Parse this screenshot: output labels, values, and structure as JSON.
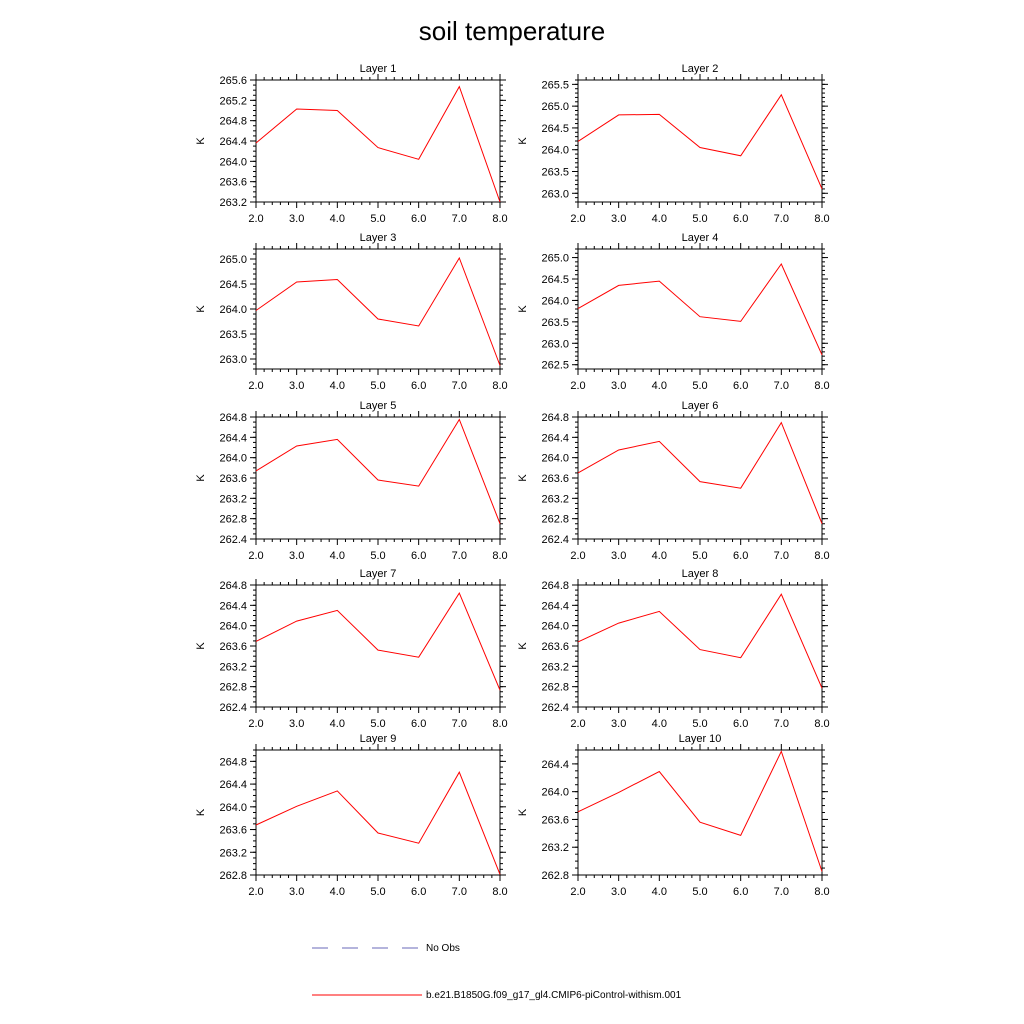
{
  "chart_data": {
    "type": "line",
    "title": "soil temperature",
    "xlabel": "",
    "ylabel": "K",
    "x": [
      2,
      3,
      4,
      5,
      6,
      7,
      8
    ],
    "xticks": [
      "2.0",
      "3.0",
      "4.0",
      "5.0",
      "6.0",
      "7.0",
      "8.0"
    ],
    "xlim": [
      2,
      8
    ],
    "series_style": {
      "color": "#ff0000"
    },
    "panels": [
      {
        "title": "Layer 1",
        "ylim": [
          263.2,
          265.6
        ],
        "yticks": [
          "263.2",
          "263.6",
          "264.0",
          "264.4",
          "264.8",
          "265.2",
          "265.6"
        ],
        "values": [
          264.36,
          265.03,
          265.0,
          264.27,
          264.04,
          265.47,
          263.2
        ]
      },
      {
        "title": "Layer 2",
        "ylim": [
          262.8,
          265.6
        ],
        "yticks": [
          "263.0",
          "263.5",
          "264.0",
          "264.5",
          "265.0",
          "265.5"
        ],
        "values": [
          264.19,
          264.8,
          264.81,
          264.05,
          263.86,
          265.26,
          263.1
        ]
      },
      {
        "title": "Layer 3",
        "ylim": [
          262.8,
          265.2
        ],
        "yticks": [
          "263.0",
          "263.5",
          "264.0",
          "264.5",
          "265.0"
        ],
        "values": [
          263.97,
          264.54,
          264.59,
          263.8,
          263.66,
          265.02,
          262.87
        ]
      },
      {
        "title": "Layer 4",
        "ylim": [
          262.4,
          265.2
        ],
        "yticks": [
          "262.5",
          "263.0",
          "263.5",
          "264.0",
          "264.5",
          "265.0"
        ],
        "values": [
          263.81,
          264.35,
          264.45,
          263.62,
          263.51,
          264.85,
          262.73
        ]
      },
      {
        "title": "Layer 5",
        "ylim": [
          262.4,
          264.8
        ],
        "yticks": [
          "262.4",
          "262.8",
          "263.2",
          "263.6",
          "264.0",
          "264.4",
          "264.8"
        ],
        "values": [
          263.74,
          264.23,
          264.36,
          263.56,
          263.44,
          264.75,
          262.7
        ]
      },
      {
        "title": "Layer 6",
        "ylim": [
          262.4,
          264.8
        ],
        "yticks": [
          "262.4",
          "262.8",
          "263.2",
          "263.6",
          "264.0",
          "264.4",
          "264.8"
        ],
        "values": [
          263.7,
          264.15,
          264.32,
          263.53,
          263.4,
          264.69,
          262.7
        ]
      },
      {
        "title": "Layer 7",
        "ylim": [
          262.4,
          264.8
        ],
        "yticks": [
          "262.4",
          "262.8",
          "263.2",
          "263.6",
          "264.0",
          "264.4",
          "264.8"
        ],
        "values": [
          263.69,
          264.09,
          264.3,
          263.52,
          263.38,
          264.64,
          262.73
        ]
      },
      {
        "title": "Layer 8",
        "ylim": [
          262.4,
          264.8
        ],
        "yticks": [
          "262.4",
          "262.8",
          "263.2",
          "263.6",
          "264.0",
          "264.4",
          "264.8"
        ],
        "values": [
          263.68,
          264.05,
          264.28,
          263.53,
          263.37,
          264.62,
          262.77
        ]
      },
      {
        "title": "Layer 9",
        "ylim": [
          262.8,
          265.0
        ],
        "yticks": [
          "262.8",
          "263.2",
          "263.6",
          "264.0",
          "264.4",
          "264.8"
        ],
        "values": [
          263.68,
          264.01,
          264.28,
          263.54,
          263.36,
          264.61,
          262.81
        ]
      },
      {
        "title": "Layer 10",
        "ylim": [
          262.8,
          264.6
        ],
        "yticks": [
          "262.8",
          "263.2",
          "263.6",
          "264.0",
          "264.4"
        ],
        "values": [
          263.71,
          263.99,
          264.29,
          263.56,
          263.37,
          264.58,
          262.85
        ]
      }
    ],
    "legend": [
      {
        "label": "No Obs",
        "style": "dashed",
        "color": "#6a6ab8"
      },
      {
        "label": "b.e21.B1850G.f09_g17_gl4.CMIP6-piControl-withism.001",
        "style": "solid",
        "color": "#ff0000"
      }
    ]
  }
}
